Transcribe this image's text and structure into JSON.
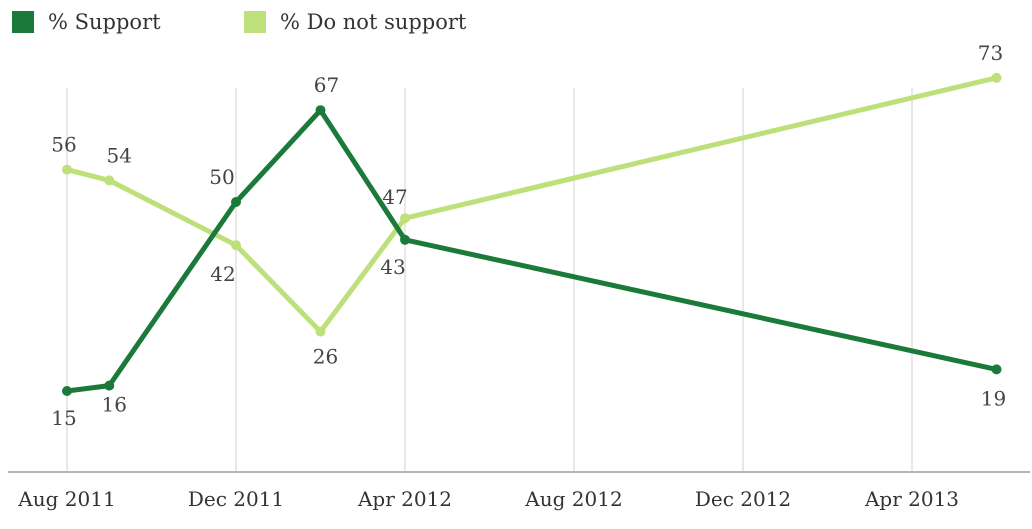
{
  "chart_data": {
    "type": "line",
    "x": [
      "2011-08",
      "2011-09",
      "2011-12",
      "2012-02",
      "2012-04",
      "2013-06"
    ],
    "xtick_labels": [
      "Aug 2011",
      "Dec 2011",
      "Apr 2012",
      "Aug 2012",
      "Dec 2012",
      "Apr 2013"
    ],
    "series": [
      {
        "name": "% Support",
        "color": "#1b7a3a",
        "values": [
          15,
          16,
          50,
          67,
          43,
          19
        ]
      },
      {
        "name": "% Do not support",
        "color": "#bde07a",
        "values": [
          56,
          54,
          42,
          26,
          47,
          73
        ]
      }
    ],
    "ylim": [
      0,
      80
    ],
    "grid": "vertical",
    "legend": "top-left"
  }
}
